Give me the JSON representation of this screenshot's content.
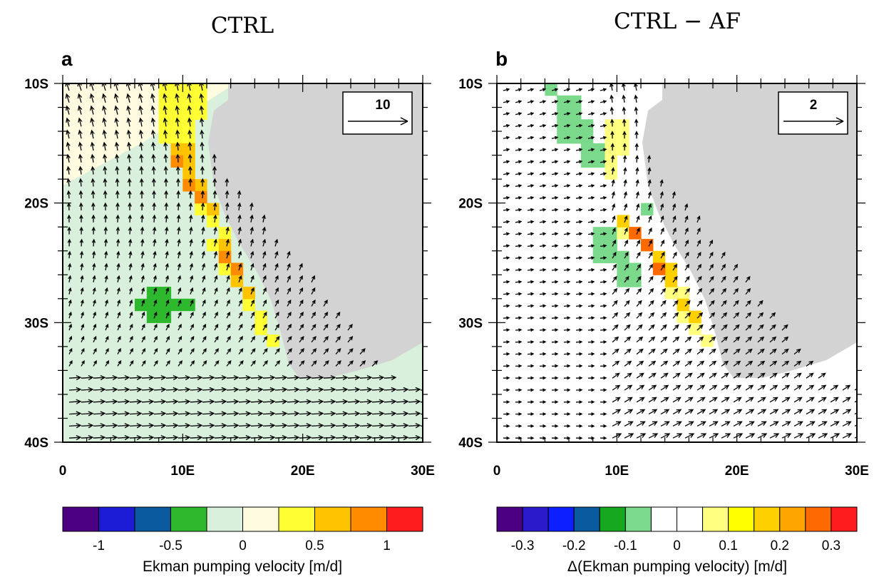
{
  "panels": [
    {
      "title": "CTRL",
      "letter": "a",
      "lat_ticks": [
        "10S",
        "20S",
        "30S",
        "40S"
      ],
      "lon_ticks": [
        "0",
        "10E",
        "20E",
        "30E"
      ],
      "ref_vector_label": "10",
      "colorbar": {
        "colors": [
          "#4b0082",
          "#1c1cd6",
          "#0a5aa0",
          "#2eb82e",
          "#d8f0dc",
          "#fffbe0",
          "#ffff33",
          "#ffc300",
          "#ff8c00",
          "#ff1c1c"
        ],
        "tick_labels": [
          "-1",
          "-0.5",
          "0",
          "0.5",
          "1"
        ],
        "label": "Ekman pumping velocity [m/d]"
      }
    },
    {
      "title": "CTRL − AF",
      "letter": "b",
      "lat_ticks": [
        "10S",
        "20S",
        "30S",
        "40S"
      ],
      "lon_ticks": [
        "0",
        "10E",
        "20E",
        "30E"
      ],
      "ref_vector_label": "2",
      "colorbar": {
        "colors": [
          "#4b0082",
          "#2a1acb",
          "#0d1eff",
          "#0a5aa0",
          "#16a81e",
          "#7ad98a",
          "#ffffff",
          "#ffffff",
          "#ffff80",
          "#ffff00",
          "#ffd000",
          "#ffa500",
          "#ff6a00",
          "#ff1c1c"
        ],
        "tick_labels": [
          "-0.3",
          "-0.2",
          "-0.1",
          "0",
          "0.1",
          "0.2",
          "0.3"
        ],
        "label": "Δ(Ekman pumping velocity) [m/d]"
      }
    }
  ],
  "map_data": {
    "lon_range": [
      0,
      30
    ],
    "lat_range": [
      -40,
      -10
    ],
    "colors": {
      "land": "#d3d3d3",
      "vector": "#000000"
    }
  }
}
